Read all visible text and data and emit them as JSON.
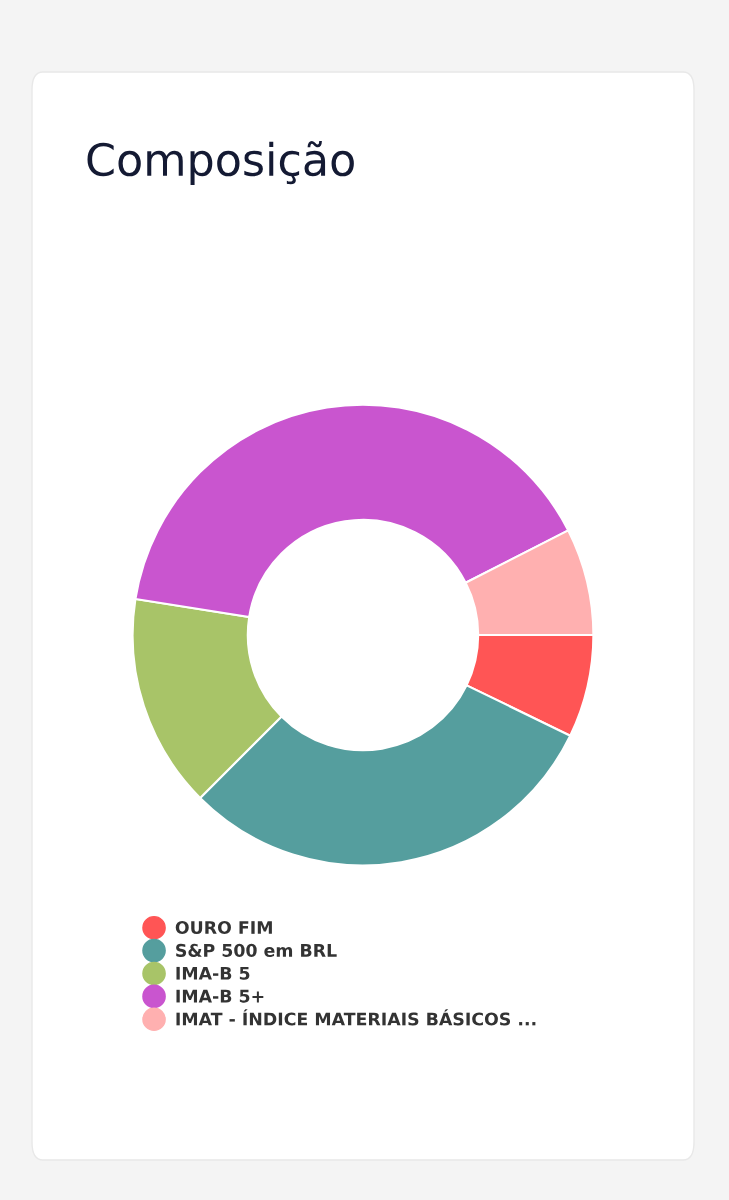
{
  "chart_data": {
    "type": "donut",
    "title": "Composição",
    "categories": [
      "OURO FIM",
      "S&P 500 em BRL",
      "IMA-B 5",
      "IMA-B 5+",
      "IMAT - ÍNDICE MATERIAIS BÁSICOS ..."
    ],
    "values": [
      7.2,
      30.3,
      15,
      40,
      7.5
    ],
    "colors": [
      "#ff5555",
      "#559e9e",
      "#a8c468",
      "#c955cf",
      "#ffb0b0"
    ],
    "legend": "bottom"
  }
}
